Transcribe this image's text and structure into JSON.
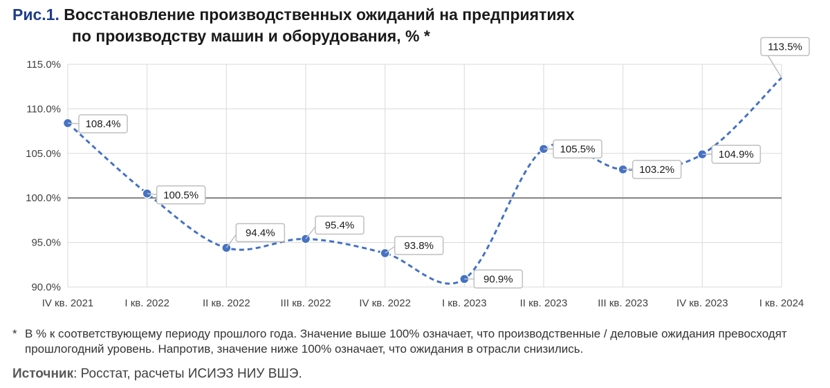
{
  "figure": {
    "prefix": "Рис.1.",
    "title_line1": "Восстановление производственных ожиданий на предприятиях",
    "title_line2": "по производству машин и оборудования, % *"
  },
  "chart_data": {
    "type": "line",
    "categories": [
      "IV кв. 2021",
      "I кв. 2022",
      "II кв. 2022",
      "III кв. 2022",
      "IV кв. 2022",
      "I кв. 2023",
      "II кв. 2023",
      "III кв. 2023",
      "IV кв. 2023",
      "I кв. 2024"
    ],
    "series": [
      {
        "values": [
          108.4,
          100.5,
          94.4,
          95.4,
          93.8,
          90.9,
          105.5,
          103.2,
          104.9,
          113.5
        ]
      }
    ],
    "data_labels": [
      "108.4%",
      "100.5%",
      "94.4%",
      "95.4%",
      "93.8%",
      "90.9%",
      "105.5%",
      "103.2%",
      "104.9%",
      "113.5%"
    ],
    "y_ticks": [
      "90.0%",
      "95.0%",
      "100.0%",
      "105.0%",
      "110.0%",
      "115.0%"
    ],
    "ylim": [
      90,
      115
    ],
    "reference_line": 100,
    "grid": true,
    "line_style": "dashed",
    "colors": {
      "line": "#4472c4",
      "marker": "#4472c4",
      "reference": "#7f7f7f",
      "grid": "#d9d9d9"
    }
  },
  "footnote": {
    "star": "*",
    "text": "В % к соответствующему периоду прошлого года. Значение выше 100% означает, что производственные / деловые ожидания превосходят прошлогодний уровень. Напротив, значение ниже 100% означает, что ожидания в отрасли снизились."
  },
  "source": {
    "label": "Источник",
    "text": ": Росстат, расчеты ИСИЭЗ НИУ ВШЭ."
  }
}
